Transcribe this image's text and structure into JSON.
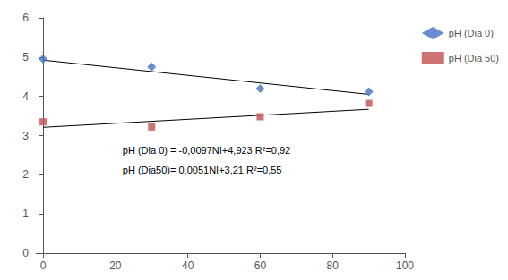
{
  "chart_data": {
    "type": "scatter",
    "x": [
      0,
      30,
      60,
      90
    ],
    "series": [
      {
        "name": "pH (Dia 0)",
        "color": "#4472C4",
        "marker": "diamond",
        "values": [
          4.95,
          4.75,
          4.2,
          4.12
        ]
      },
      {
        "name": "pH (Dia 50)",
        "color": "#C0504D",
        "marker": "square",
        "values": [
          3.35,
          3.22,
          3.48,
          3.82
        ]
      }
    ],
    "trend_lines": [
      {
        "x": [
          0,
          90
        ],
        "values": [
          4.923,
          4.05
        ],
        "color": "#000000"
      },
      {
        "x": [
          0,
          90
        ],
        "values": [
          3.21,
          3.669
        ],
        "color": "#000000"
      }
    ],
    "xlim": [
      -2,
      100
    ],
    "xticks": [
      0,
      20,
      40,
      60,
      80,
      100
    ],
    "ylim": [
      0,
      6
    ],
    "yticks": [
      0,
      1,
      2,
      3,
      4,
      5,
      6
    ],
    "grid": false,
    "legend": "right",
    "annotations": [
      "pH (Dia 0) = -0,0097NI+4,923 R²=0,92",
      "pH (Dia50)= 0,0051NI+3,21 R²=0,55"
    ]
  }
}
